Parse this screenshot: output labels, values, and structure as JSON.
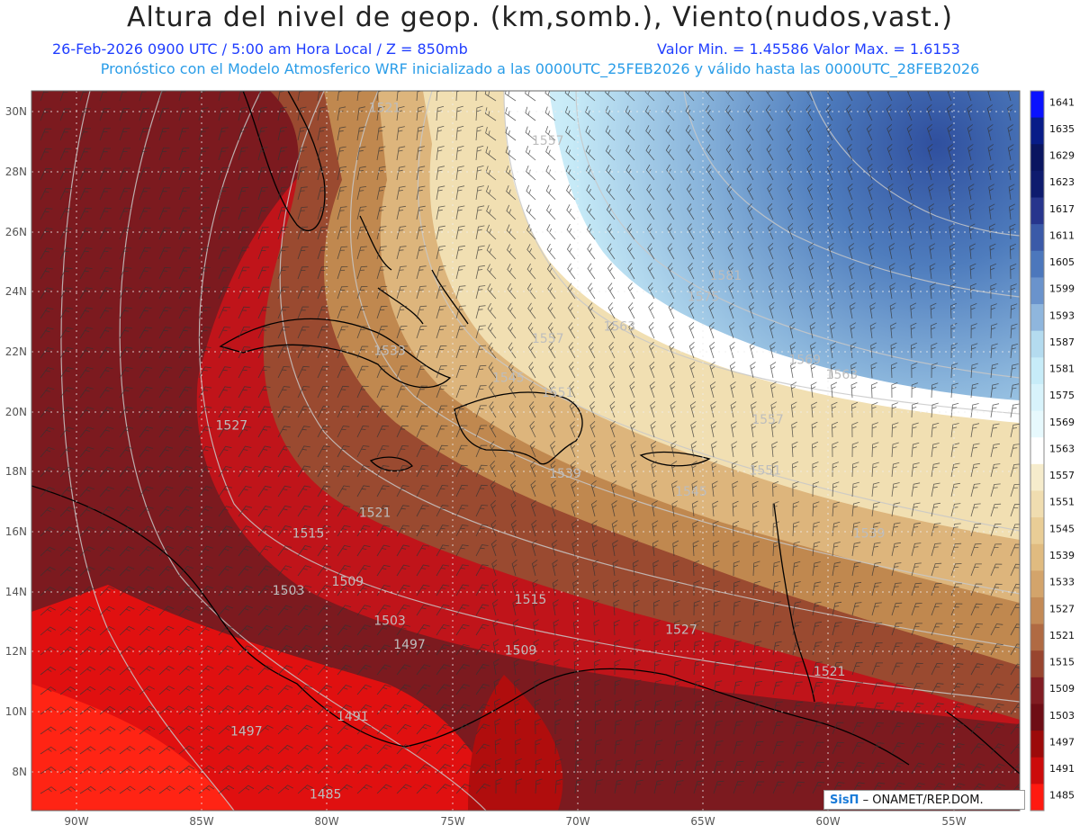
{
  "header": {
    "title": "Altura del nivel de geop. (km,somb.), Viento(nudos,vast.)",
    "line1_left": "26-Feb-2026  0900 UTC / 5:00 am Hora Local / Z = 850mb",
    "line1_right": "Valor Min. = 1.45586  Valor Max. = 1.6153",
    "line2": "Pronóstico con el Modelo Atmosferico WRF inicializado a las 0000UTC_25FEB2026 y válido hasta las  0000UTC_28FEB2026"
  },
  "map": {
    "lon_range": [
      -92.5,
      -52.5
    ],
    "lat_range": [
      6.7,
      30.7
    ],
    "lon_ticks": [
      "90W",
      "85W",
      "80W",
      "75W",
      "70W",
      "65W",
      "60W",
      "55W"
    ],
    "lat_ticks": [
      "30N",
      "28N",
      "26N",
      "24N",
      "22N",
      "20N",
      "18N",
      "16N",
      "14N",
      "12N",
      "10N",
      "8N"
    ],
    "contour_labels": [
      {
        "text": "1521",
        "lon": -78.2,
        "lat": 30.0
      },
      {
        "text": "1557",
        "lon": -71.6,
        "lat": 28.9
      },
      {
        "text": "1581",
        "lon": -64.4,
        "lat": 24.4
      },
      {
        "text": "1575",
        "lon": -65.3,
        "lat": 23.7
      },
      {
        "text": "1563",
        "lon": -68.7,
        "lat": 22.7
      },
      {
        "text": "1557",
        "lon": -71.6,
        "lat": 22.3
      },
      {
        "text": "1569",
        "lon": -61.2,
        "lat": 21.6
      },
      {
        "text": "1563",
        "lon": -59.7,
        "lat": 21.1
      },
      {
        "text": "1545",
        "lon": -73.2,
        "lat": 21.0
      },
      {
        "text": "1551",
        "lon": -71.2,
        "lat": 20.5
      },
      {
        "text": "1557",
        "lon": -62.7,
        "lat": 19.6
      },
      {
        "text": "1533",
        "lon": -78.0,
        "lat": 21.9
      },
      {
        "text": "1527",
        "lon": -84.4,
        "lat": 19.4
      },
      {
        "text": "1551",
        "lon": -62.8,
        "lat": 17.9
      },
      {
        "text": "1539",
        "lon": -70.9,
        "lat": 17.8
      },
      {
        "text": "1545",
        "lon": -65.8,
        "lat": 17.2
      },
      {
        "text": "1521",
        "lon": -78.6,
        "lat": 16.5
      },
      {
        "text": "1539",
        "lon": -58.6,
        "lat": 15.8
      },
      {
        "text": "1515",
        "lon": -81.3,
        "lat": 15.8
      },
      {
        "text": "1509",
        "lon": -79.7,
        "lat": 14.2
      },
      {
        "text": "1503",
        "lon": -82.1,
        "lat": 13.9
      },
      {
        "text": "1515",
        "lon": -72.3,
        "lat": 13.6
      },
      {
        "text": "1503",
        "lon": -78.0,
        "lat": 12.9
      },
      {
        "text": "1527",
        "lon": -66.2,
        "lat": 12.6
      },
      {
        "text": "1497",
        "lon": -77.2,
        "lat": 12.1
      },
      {
        "text": "1509",
        "lon": -72.7,
        "lat": 11.9
      },
      {
        "text": "1521",
        "lon": -60.2,
        "lat": 11.2
      },
      {
        "text": "1491",
        "lon": -79.5,
        "lat": 9.7
      },
      {
        "text": "1497",
        "lon": -83.8,
        "lat": 9.2
      },
      {
        "text": "1485",
        "lon": -80.6,
        "lat": 7.1
      }
    ]
  },
  "colorbar": {
    "labels": [
      "1641",
      "1635",
      "1629",
      "1623",
      "1617",
      "1611",
      "1605",
      "1599",
      "1593",
      "1587",
      "1581",
      "1575",
      "1569",
      "1563",
      "1557",
      "1551",
      "1545",
      "1539",
      "1533",
      "1527",
      "1521",
      "1515",
      "1509",
      "1503",
      "1497",
      "1491",
      "1485"
    ],
    "colors": [
      "#0a12ff",
      "#081c88",
      "#0a1560",
      "#0e1b6e",
      "#27358d",
      "#3b5aa8",
      "#4c77bc",
      "#6a93cc",
      "#8fb6dd",
      "#b4dbef",
      "#c7ecf8",
      "#d8f3fb",
      "#e7f9fd",
      "#ffffff",
      "#f6eccc",
      "#f0ddb0",
      "#e9cd96",
      "#e0bb80",
      "#d3a46b",
      "#c38a56",
      "#b06a43",
      "#98452f",
      "#801c22",
      "#6e0d15",
      "#9c0a0a",
      "#cc0b0b",
      "#ff1a10"
    ]
  },
  "credit": {
    "brand": "SisΠ",
    "text": "– ONAMET/REP.DOM."
  },
  "colors": {
    "title": "#222222",
    "subtitle": "#1f3dff",
    "subtitle2": "#2a9de8",
    "coast": "#000000",
    "contour": "#c8c8c8",
    "barb": "#333333"
  }
}
